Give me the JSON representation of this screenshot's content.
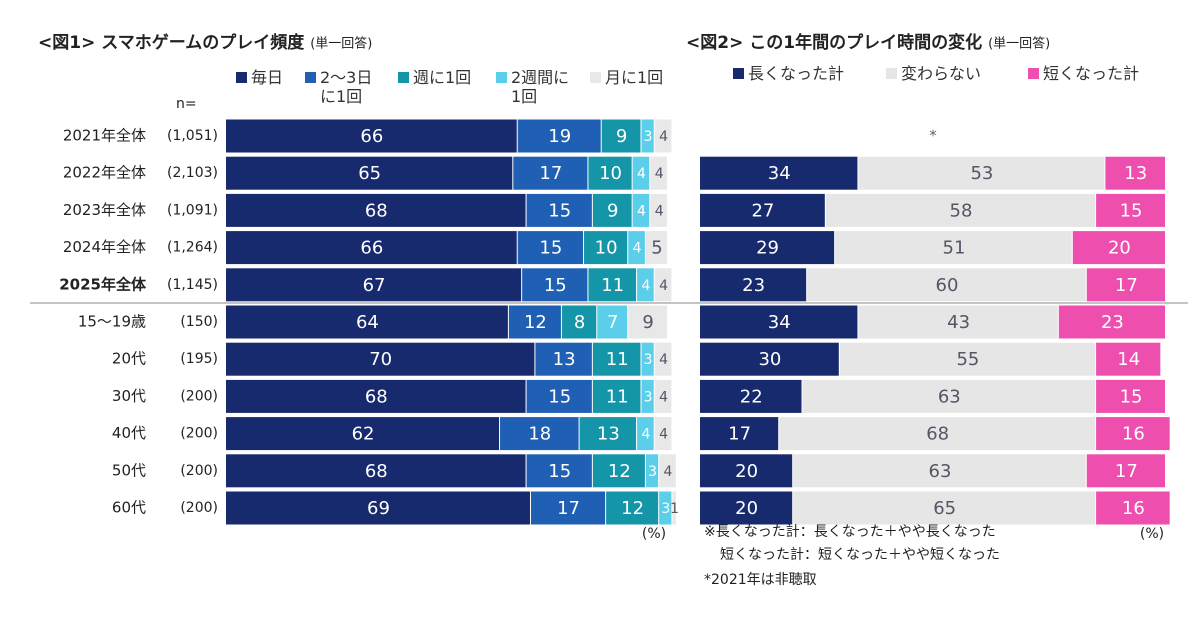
{
  "chart_data": [
    {
      "type": "bar",
      "orientation": "horizontal",
      "stacked": true,
      "title": "<図1> スマホゲームのプレイ頻度",
      "subtitle": "(単一回答)",
      "n_header": "n=",
      "unit_label": "(%)",
      "categories": [
        "2021年全体",
        "2022年全体",
        "2023年全体",
        "2024年全体",
        "2025年全体",
        "15～19歳",
        "20代",
        "30代",
        "40代",
        "50代",
        "60代"
      ],
      "sample_sizes": [
        "(1,051)",
        "(2,103)",
        "(1,091)",
        "(1,264)",
        "(1,145)",
        "(150)",
        "(195)",
        "(200)",
        "(200)",
        "(200)",
        "(200)"
      ],
      "bold_rows": [
        4
      ],
      "xlim": [
        0,
        100
      ],
      "series": [
        {
          "name": "毎日",
          "color": "#172a6e",
          "values": [
            66,
            65,
            68,
            66,
            67,
            64,
            70,
            68,
            62,
            68,
            69
          ]
        },
        {
          "name": "2～3日に1回",
          "color": "#1f5fb4",
          "values": [
            19,
            17,
            15,
            15,
            15,
            12,
            13,
            15,
            18,
            15,
            17
          ]
        },
        {
          "name": "週に1回",
          "color": "#1596a8",
          "values": [
            9,
            10,
            9,
            10,
            11,
            8,
            11,
            11,
            13,
            12,
            12
          ]
        },
        {
          "name": "2週間に1回",
          "color": "#5bcfe9",
          "values": [
            3,
            4,
            4,
            4,
            4,
            7,
            3,
            3,
            4,
            3,
            3
          ]
        },
        {
          "name": "月に1回",
          "color": "#e8e8e8",
          "values": [
            4,
            4,
            4,
            5,
            4,
            9,
            4,
            4,
            4,
            4,
            1
          ]
        }
      ]
    },
    {
      "type": "bar",
      "orientation": "horizontal",
      "stacked": true,
      "title": "<図2> この1年間のプレイ時間の変化",
      "subtitle": "(単一回答)",
      "unit_label": "(%)",
      "missing_mark": "*",
      "notes": [
        "※長くなった計：長くなった＋やや長くなった",
        "短くなった計：短くなった＋やや短くなった",
        "*2021年は非聴取"
      ],
      "xlim": [
        0,
        100
      ],
      "series": [
        {
          "name": "長くなった計",
          "color": "#172a6e",
          "values": [
            null,
            34,
            27,
            29,
            23,
            34,
            30,
            22,
            17,
            20,
            20
          ]
        },
        {
          "name": "変わらない",
          "color": "#e6e6e6",
          "values": [
            null,
            53,
            58,
            51,
            60,
            43,
            55,
            63,
            68,
            63,
            65
          ]
        },
        {
          "name": "短くなった計",
          "color": "#ee4fae",
          "values": [
            null,
            13,
            15,
            20,
            17,
            23,
            14,
            15,
            16,
            17,
            16
          ]
        }
      ]
    }
  ]
}
